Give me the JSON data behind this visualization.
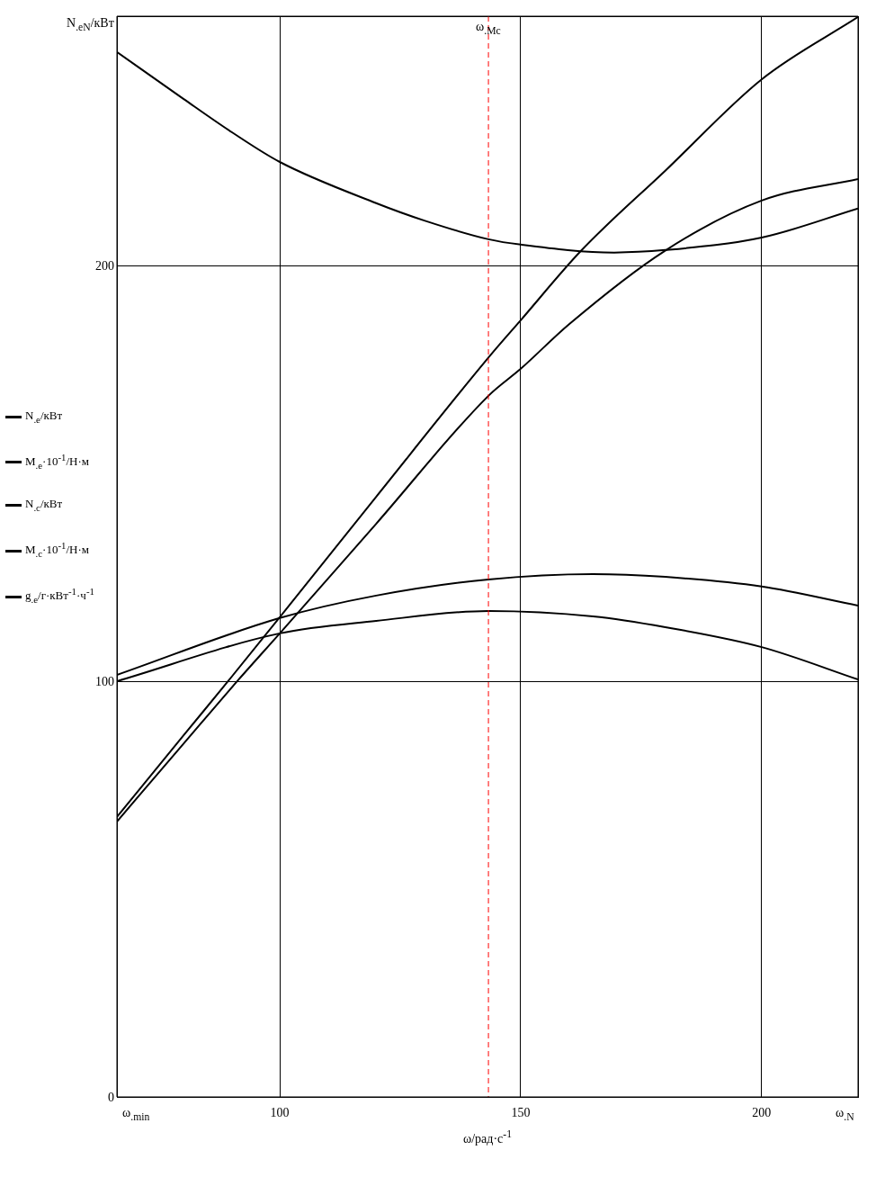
{
  "chart_data": {
    "type": "line",
    "xlim": [
      66.2,
      220
    ],
    "ylim": [
      0,
      260.2
    ],
    "xticks": [
      {
        "value": 66.2,
        "label": "ω$_{.min}$"
      },
      100,
      150,
      200,
      {
        "value": 220,
        "label": "ω$_{.N}$"
      }
    ],
    "yticks": [
      0,
      100,
      200,
      {
        "value": 260.2,
        "label": "N$_{.eN}$/кВт"
      }
    ],
    "xlabel": "ω/рад·с$^{-1}$",
    "grid": true,
    "legend": "left",
    "marker": "none",
    "line_style": "solid",
    "ref_lines": [
      {
        "axis": "x",
        "value": 143.3,
        "label": "ω$_{.Mc}$",
        "color": "#ff0000",
        "line_style": "dashed"
      }
    ],
    "series": [
      {
        "name": "N$_{.e}$/кВт",
        "color": "#000000",
        "x": [
          66.2,
          80,
          89.2,
          100,
          120,
          143.3,
          150,
          162.5,
          180,
          200,
          220
        ],
        "values": [
          67.4,
          87,
          100,
          115.5,
          144.5,
          178,
          187,
          203.7,
          223,
          245,
          260
        ]
      },
      {
        "name": "M$_{.e}$·10$^{-1}$/Н·м",
        "color": "#000000",
        "x": [
          66.2,
          100,
          120,
          143.3,
          165,
          180,
          200,
          220
        ],
        "values": [
          101.6,
          115.3,
          120.7,
          124.6,
          125.9,
          125.2,
          122.9,
          118.3
        ]
      },
      {
        "name": "N$_{.c}$/кВт",
        "color": "#000000",
        "x": [
          66.2,
          80,
          91.1,
          100,
          120,
          143.3,
          150,
          160,
          179.9,
          200,
          220
        ],
        "values": [
          66.3,
          85,
          100,
          111.6,
          138,
          168.8,
          175.3,
          186,
          203.7,
          215.8,
          221
        ]
      },
      {
        "name": "M$_{.c}$·10$^{-1}$/Н·м",
        "color": "#000000",
        "x": [
          66.2,
          100,
          120,
          143.3,
          165,
          180,
          200,
          220
        ],
        "values": [
          100.1,
          111.6,
          114.6,
          117,
          115.7,
          113.1,
          108.3,
          100.5
        ]
      },
      {
        "name": "g$_{.e}$/г·кВт$^{-1}$·ч$^{-1}$",
        "color": "#000000",
        "x": [
          66.2,
          80,
          90,
          100,
          120,
          130,
          143.3,
          150,
          169.4,
          180,
          200,
          220
        ],
        "values": [
          251.6,
          240.3,
          232.3,
          225.1,
          215.2,
          211,
          206.5,
          205.2,
          203.3,
          203.9,
          206.9,
          213.9
        ]
      }
    ]
  }
}
